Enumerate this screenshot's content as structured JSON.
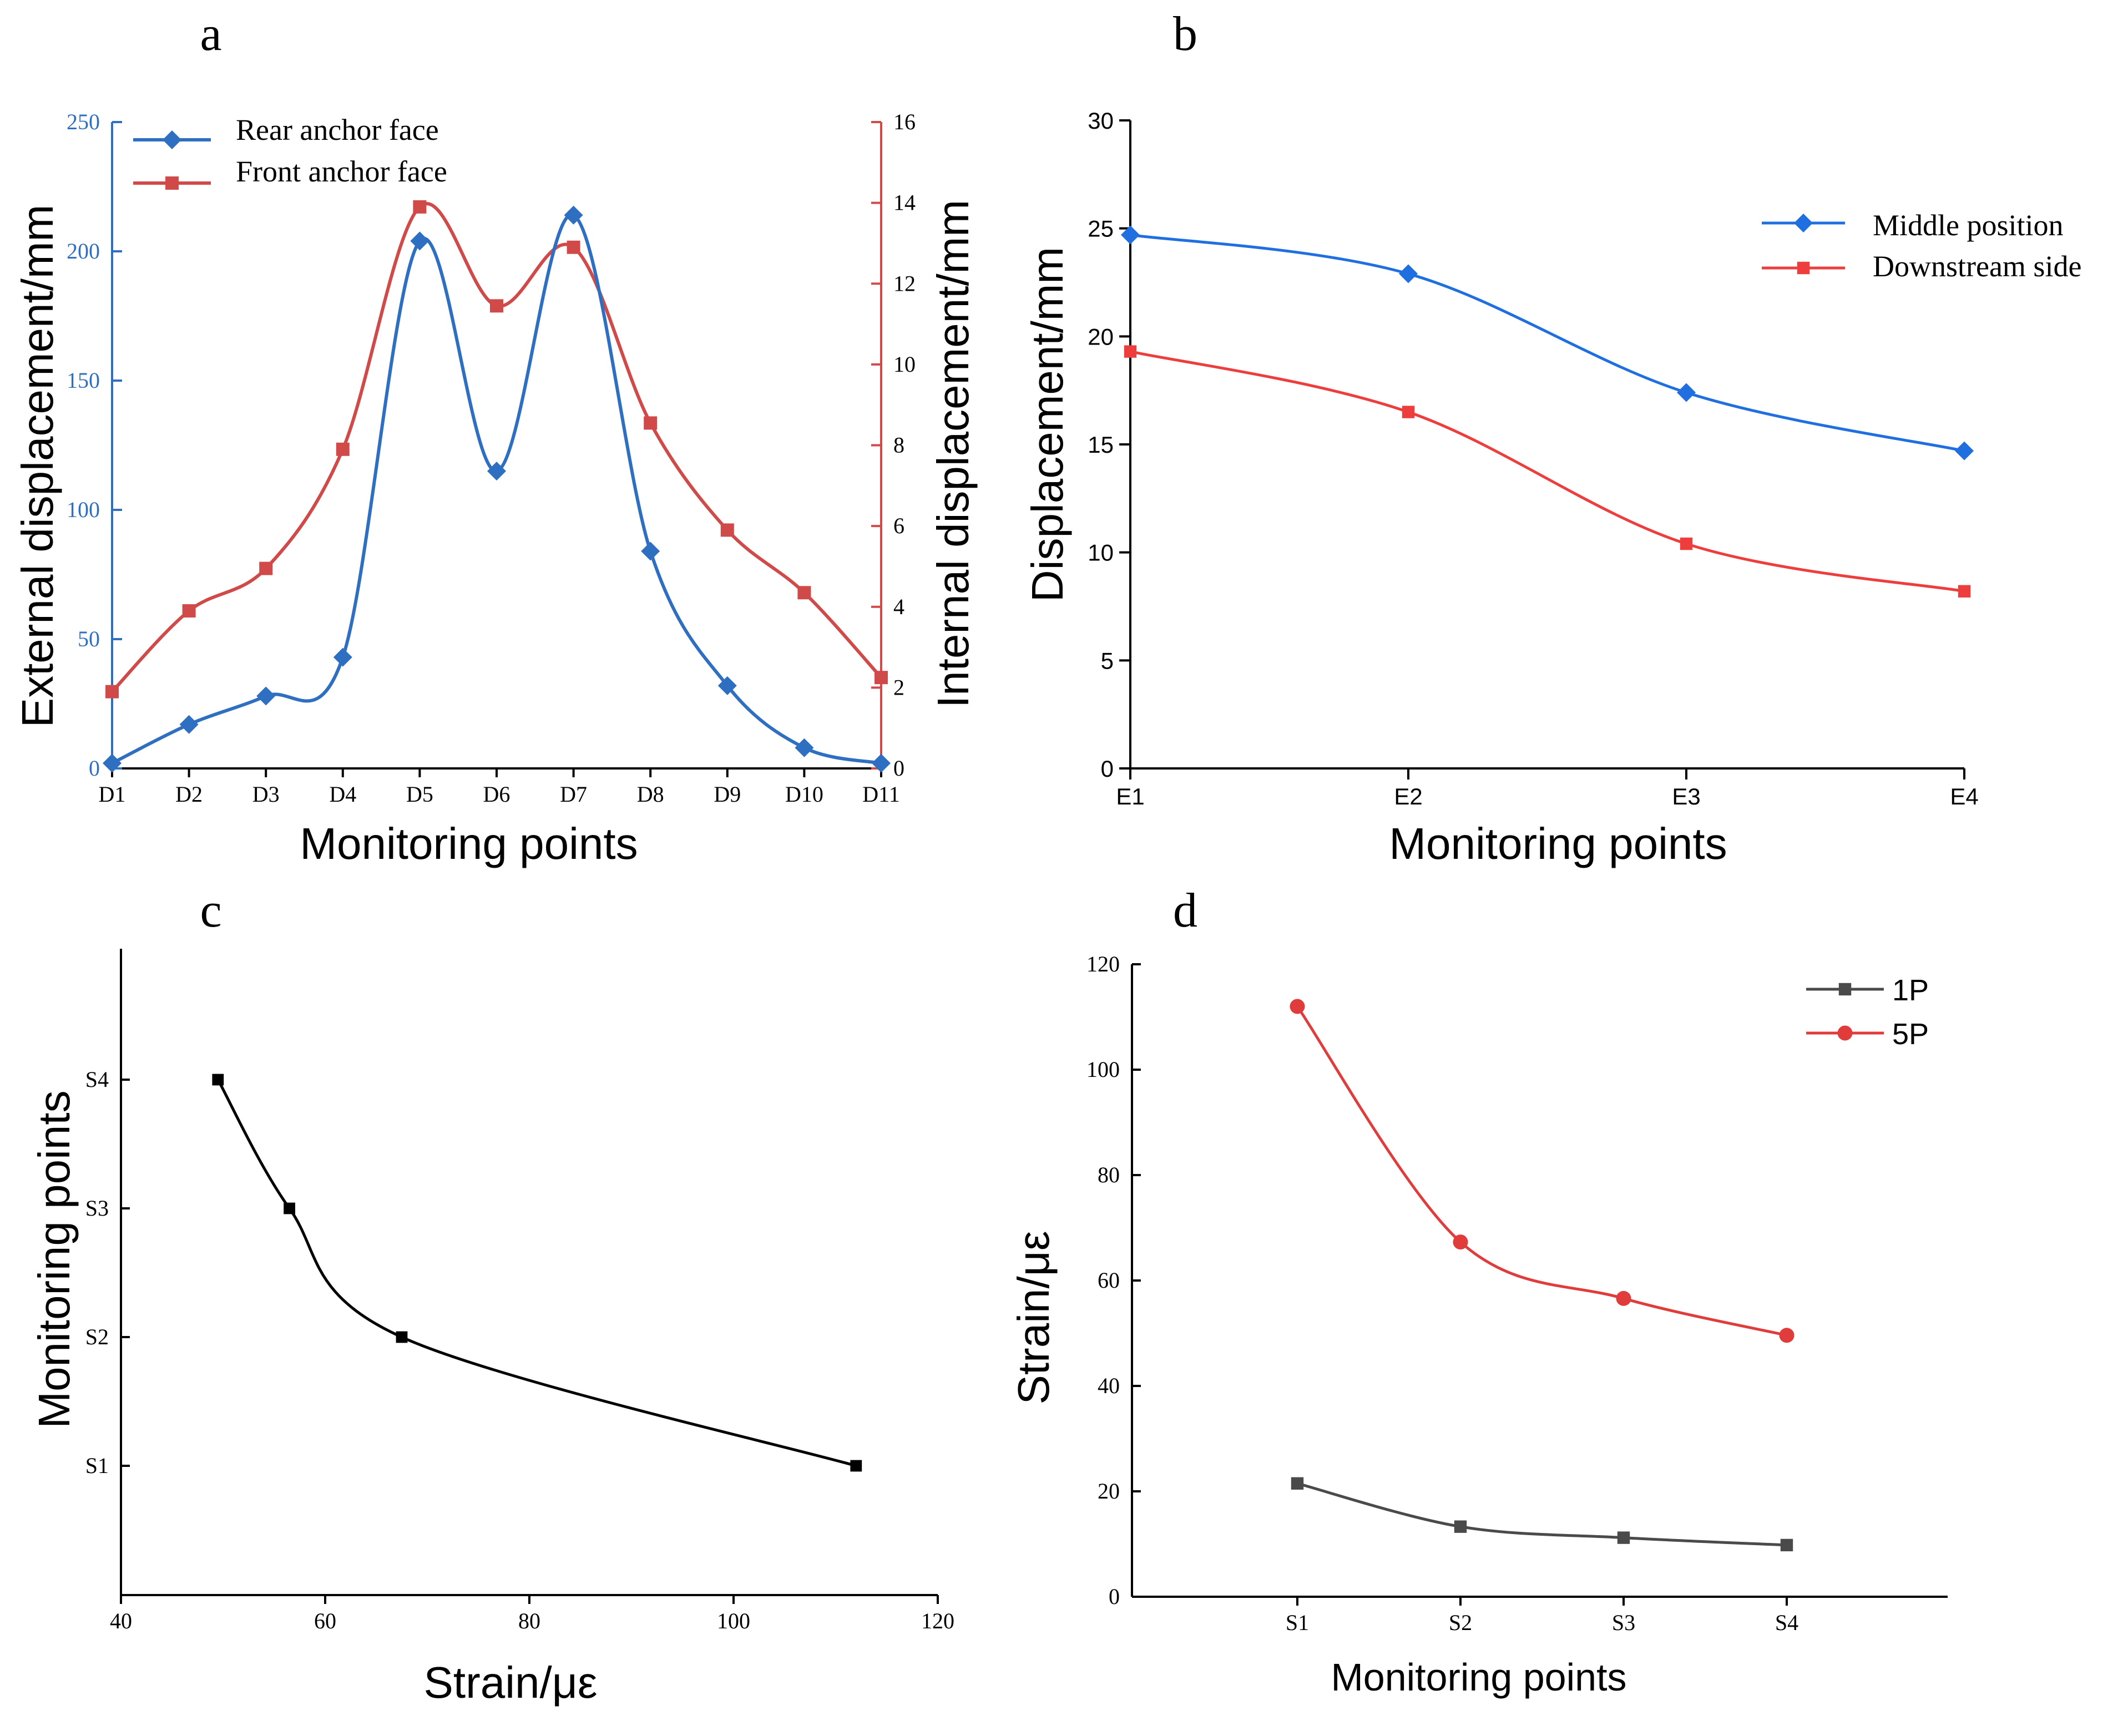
{
  "chart_data": [
    {
      "id": "a",
      "type": "line",
      "panel_label": "a",
      "xlabel": "Monitoring points",
      "ylabel": "External displacement/mm",
      "y2label": "Internal displacement/mm",
      "categories": [
        "D1",
        "D2",
        "D3",
        "D4",
        "D5",
        "D6",
        "D7",
        "D8",
        "D9",
        "D10",
        "D11"
      ],
      "ylim": [
        0,
        250
      ],
      "yticks": [
        0,
        50,
        100,
        150,
        200,
        250
      ],
      "y2lim": [
        0,
        16
      ],
      "y2ticks": [
        0,
        2,
        4,
        6,
        8,
        10,
        12,
        14,
        16
      ],
      "legend_position": "top-left",
      "series": [
        {
          "name": "Rear anchor face",
          "axis": "left",
          "marker": "diamond",
          "color": "#2f6fc1",
          "values": [
            2,
            17,
            28,
            43,
            204,
            115,
            214,
            84,
            32,
            8,
            2
          ]
        },
        {
          "name": "Front anchor face",
          "axis": "right",
          "marker": "square",
          "color": "#d14a4a",
          "values": [
            1.9,
            3.9,
            4.95,
            7.9,
            13.9,
            11.45,
            12.9,
            8.55,
            5.9,
            4.35,
            2.25
          ]
        }
      ]
    },
    {
      "id": "b",
      "type": "line",
      "panel_label": "b",
      "xlabel": "Monitoring points",
      "ylabel": "Displacement/mm",
      "categories": [
        "E1",
        "E2",
        "E3",
        "E4"
      ],
      "ylim": [
        0,
        30
      ],
      "yticks": [
        0,
        5,
        10,
        15,
        20,
        25,
        30
      ],
      "legend_position": "top-right",
      "series": [
        {
          "name": "Middle position",
          "marker": "diamond",
          "color": "#1f6fe0",
          "values": [
            24.7,
            22.9,
            17.4,
            14.7
          ]
        },
        {
          "name": "Downstream side",
          "marker": "square",
          "color": "#ee3d3d",
          "values": [
            19.3,
            16.5,
            10.4,
            8.2
          ]
        }
      ]
    },
    {
      "id": "c",
      "type": "line",
      "panel_label": "c",
      "xlabel": "Strain/με",
      "ylabel": "Monitoring points",
      "xlim": [
        40,
        120
      ],
      "xticks": [
        40,
        60,
        80,
        100,
        120
      ],
      "ycategories": [
        "S1",
        "S2",
        "S3",
        "S4"
      ],
      "series": [
        {
          "name": "",
          "marker": "square",
          "color": "#000000",
          "points": [
            {
              "x": 49.5,
              "y": "S4"
            },
            {
              "x": 56.5,
              "y": "S3"
            },
            {
              "x": 67.5,
              "y": "S2"
            },
            {
              "x": 112,
              "y": "S1"
            }
          ]
        }
      ]
    },
    {
      "id": "d",
      "type": "line",
      "panel_label": "d",
      "xlabel": "Monitoring points",
      "ylabel": "Strain/με",
      "categories": [
        "S1",
        "S2",
        "S3",
        "S4"
      ],
      "ylim": [
        0,
        120
      ],
      "yticks": [
        0,
        20,
        40,
        60,
        80,
        100,
        120
      ],
      "legend_position": "top-right",
      "series": [
        {
          "name": "1P",
          "marker": "square",
          "color": "#4a4a4a",
          "values": [
            21.5,
            13.3,
            11.2,
            9.8
          ]
        },
        {
          "name": "5P",
          "marker": "circle",
          "color": "#e03c3c",
          "values": [
            112,
            67.3,
            56.6,
            49.6
          ]
        }
      ]
    }
  ]
}
